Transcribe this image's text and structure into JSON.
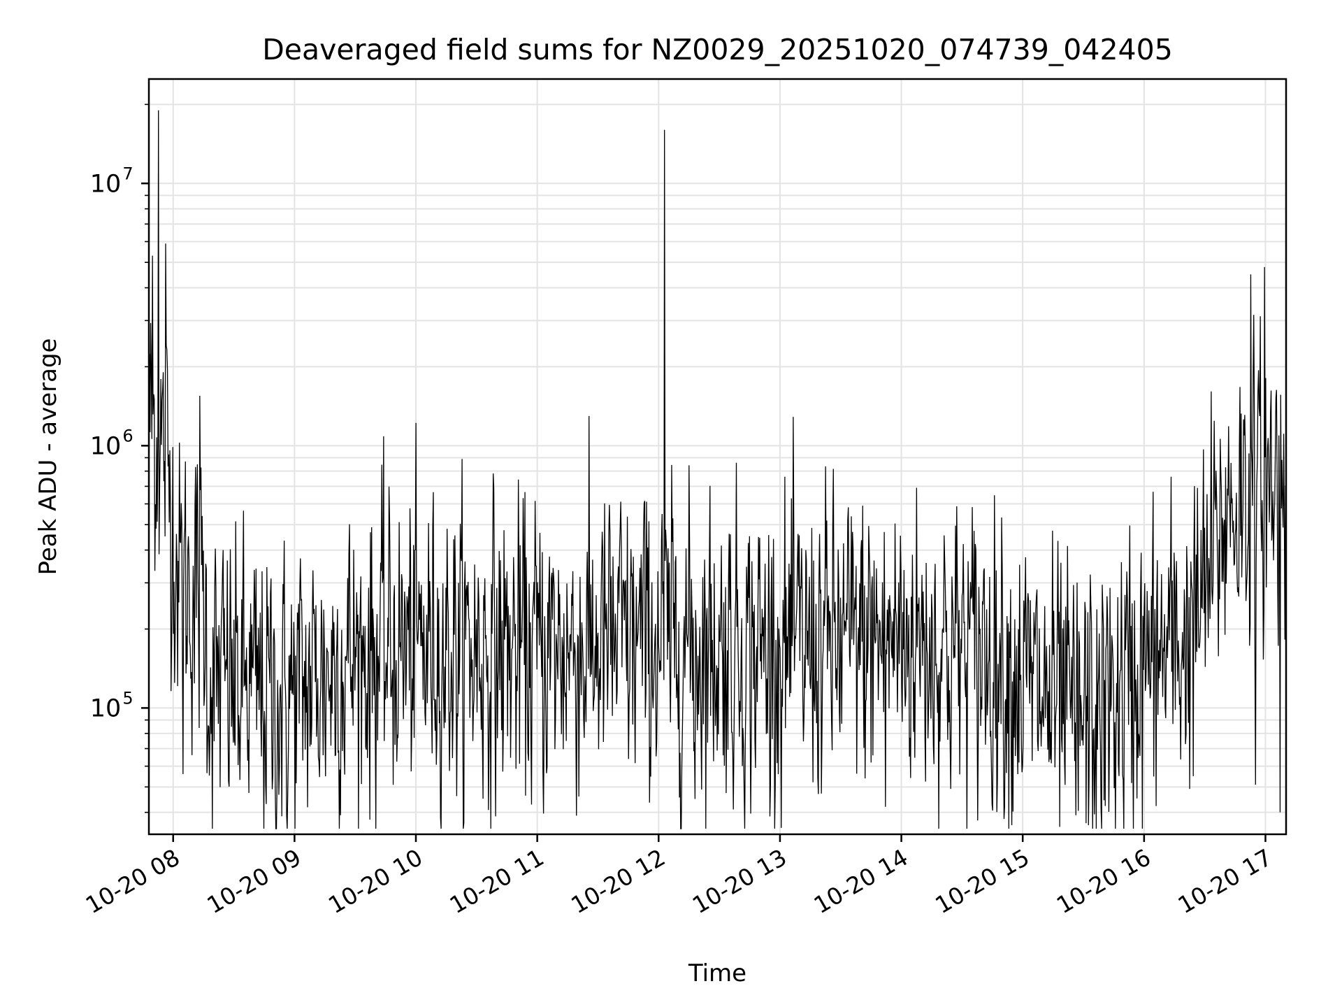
{
  "chart_data": {
    "type": "line",
    "title": "Deaveraged field sums for NZ0029_20251020_074739_042405",
    "xlabel": "Time",
    "ylabel": "Peak ADU - average",
    "yscale": "log",
    "ylim": [
      33000,
      25000000
    ],
    "xlim_hours": [
      7.8,
      17.17
    ],
    "grid": true,
    "line_color": "#000000",
    "x_ticks": [
      {
        "hour": 8,
        "label": "10-20 08"
      },
      {
        "hour": 9,
        "label": "10-20 09"
      },
      {
        "hour": 10,
        "label": "10-20 10"
      },
      {
        "hour": 11,
        "label": "10-20 11"
      },
      {
        "hour": 12,
        "label": "10-20 12"
      },
      {
        "hour": 13,
        "label": "10-20 13"
      },
      {
        "hour": 14,
        "label": "10-20 14"
      },
      {
        "hour": 15,
        "label": "10-20 15"
      },
      {
        "hour": 16,
        "label": "10-20 16"
      },
      {
        "hour": 17,
        "label": "10-20 17"
      }
    ],
    "y_ticks": [
      {
        "value": 100000,
        "base": "10",
        "exp": "5"
      },
      {
        "value": 1000000,
        "base": "10",
        "exp": "6"
      },
      {
        "value": 10000000,
        "base": "10",
        "exp": "7"
      }
    ],
    "series": [
      {
        "name": "Peak ADU - average",
        "profile": [
          {
            "hour": 7.8,
            "median": 1300000
          },
          {
            "hour": 7.95,
            "median": 900000
          },
          {
            "hour": 8.05,
            "median": 300000
          },
          {
            "hour": 8.25,
            "median": 260000
          },
          {
            "hour": 8.3,
            "median": 130000
          },
          {
            "hour": 8.9,
            "median": 105000
          },
          {
            "hour": 9.3,
            "median": 140000
          },
          {
            "hour": 9.5,
            "median": 160000
          },
          {
            "hour": 10.0,
            "median": 170000
          },
          {
            "hour": 11.0,
            "median": 165000
          },
          {
            "hour": 12.0,
            "median": 180000
          },
          {
            "hour": 13.0,
            "median": 165000
          },
          {
            "hour": 14.0,
            "median": 185000
          },
          {
            "hour": 14.8,
            "median": 160000
          },
          {
            "hour": 15.3,
            "median": 95000
          },
          {
            "hour": 15.6,
            "median": 90000
          },
          {
            "hour": 16.0,
            "median": 140000
          },
          {
            "hour": 16.4,
            "median": 190000
          },
          {
            "hour": 16.7,
            "median": 600000
          },
          {
            "hour": 17.17,
            "median": 750000
          }
        ],
        "spikes": [
          {
            "hour": 7.88,
            "value": 19000000
          },
          {
            "hour": 7.83,
            "value": 5300000
          },
          {
            "hour": 7.94,
            "value": 5900000
          },
          {
            "hour": 8.22,
            "value": 1550000
          },
          {
            "hour": 8.08,
            "value": 56000
          },
          {
            "hour": 12.05,
            "value": 16000000
          },
          {
            "hour": 12.3,
            "value": 45000
          },
          {
            "hour": 13.87,
            "value": 42000
          },
          {
            "hour": 15.44,
            "value": 39000
          },
          {
            "hour": 16.88,
            "value": 4500000
          },
          {
            "hour": 16.99,
            "value": 4800000
          },
          {
            "hour": 17.12,
            "value": 40000
          },
          {
            "hour": 16.92,
            "value": 51000
          }
        ],
        "num_points": 1900
      }
    ]
  }
}
